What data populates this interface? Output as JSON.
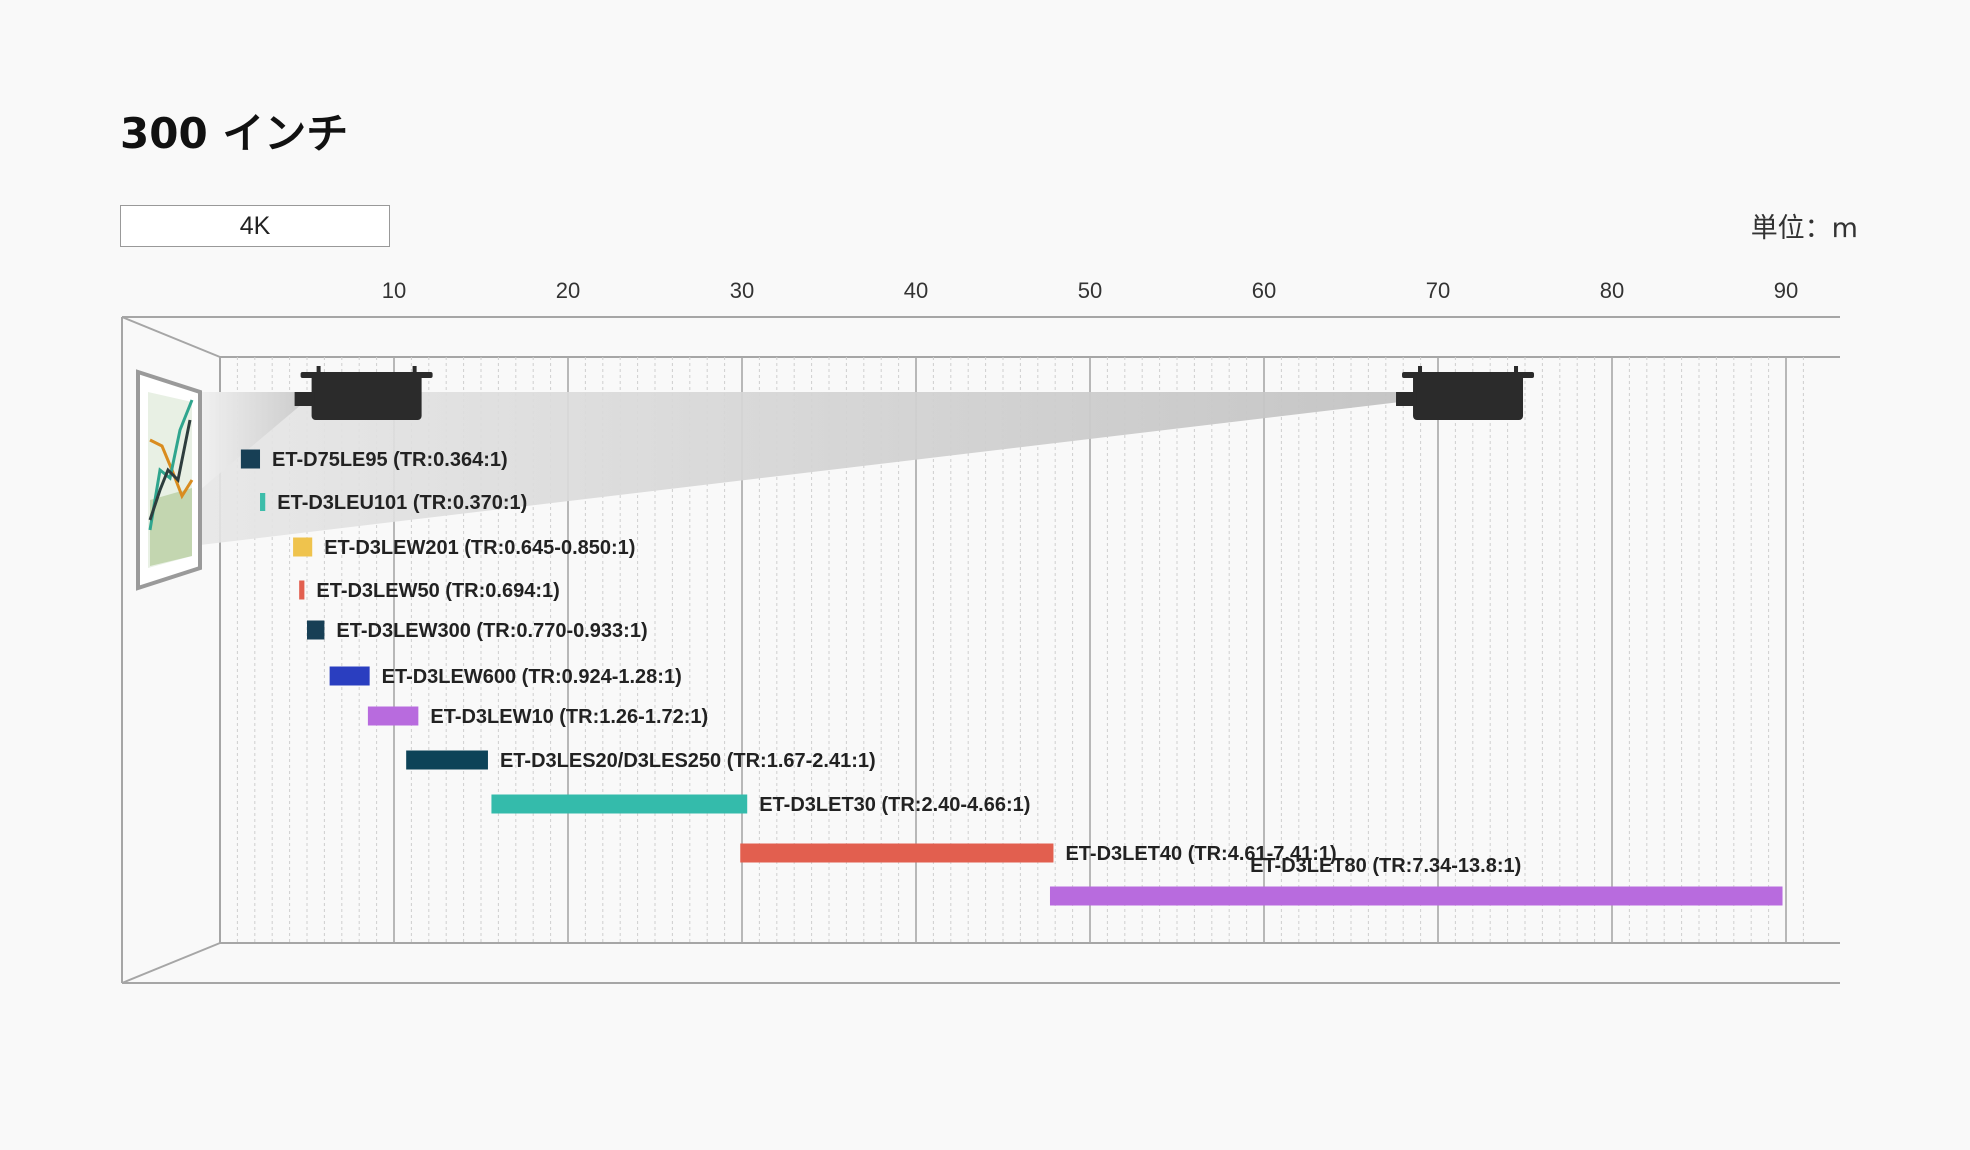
{
  "page": {
    "title": "300 インチ",
    "resolution_tab": "4K",
    "unit": "単位：m"
  },
  "colors": {
    "background": "#f9f9f9",
    "gridline_major": "#a8a8a8",
    "gridline_minor": "#cfcfcf",
    "projector": "#2b2b2b",
    "beam": "#cfcfcf"
  },
  "icons": {
    "screen": "screen-chart-image-icon",
    "projector_near": "projector-icon",
    "projector_far": "projector-icon"
  },
  "chart_data": {
    "type": "bar",
    "orientation": "horizontal-range",
    "xlabel": "",
    "ylabel": "",
    "xlim": [
      0,
      91
    ],
    "x_ticks": [
      10,
      20,
      30,
      40,
      50,
      60,
      70,
      80,
      90
    ],
    "grid": true,
    "series": [
      {
        "name": "ET-D75LE95 (TR:0.364:1)",
        "start": 1.2,
        "end": 2.3,
        "color": "#173f55"
      },
      {
        "name": "ET-D3LEU101 (TR:0.370:1)",
        "start": 2.3,
        "end": 2.6,
        "color": "#3dbdaa"
      },
      {
        "name": "ET-D3LEW201 (TR:0.645-0.850:1)",
        "start": 4.2,
        "end": 5.3,
        "color": "#efc34d"
      },
      {
        "name": "ET-D3LEW50 (TR:0.694:1)",
        "start": 4.55,
        "end": 4.85,
        "color": "#e25f4f"
      },
      {
        "name": "ET-D3LEW300 (TR:0.770-0.933:1)",
        "start": 5.0,
        "end": 6.0,
        "color": "#173f55"
      },
      {
        "name": "ET-D3LEW600 (TR:0.924-1.28:1)",
        "start": 6.3,
        "end": 8.6,
        "color": "#2a3ec0"
      },
      {
        "name": "ET-D3LEW10 (TR:1.26-1.72:1)",
        "start": 8.5,
        "end": 11.4,
        "color": "#b86bde"
      },
      {
        "name": "ET-D3LES20/D3LES250 (TR:1.67-2.41:1)",
        "start": 10.7,
        "end": 15.4,
        "color": "#0d4358"
      },
      {
        "name": "ET-D3LET30 (TR:2.40-4.66:1)",
        "start": 15.6,
        "end": 30.3,
        "color": "#34bbab"
      },
      {
        "name": "ET-D3LET40 (TR:4.61-7.41:1)",
        "start": 29.9,
        "end": 47.9,
        "color": "#e25f4f"
      },
      {
        "name": "ET-D3LET80 (TR:7.34-13.8:1)",
        "start": 47.7,
        "end": 89.8,
        "color": "#b86bde"
      }
    ],
    "projectors_shown_at": [
      9.0,
      72.3
    ]
  }
}
